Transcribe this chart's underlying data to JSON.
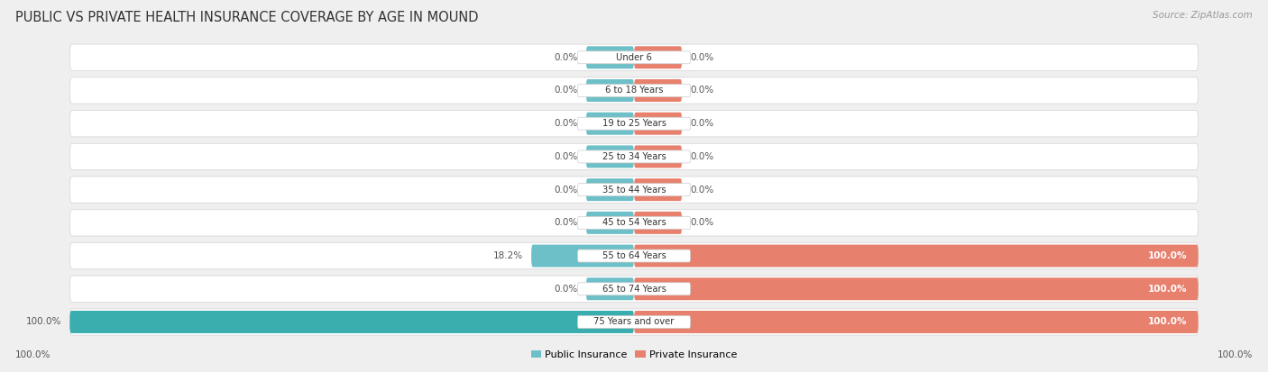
{
  "title": "PUBLIC VS PRIVATE HEALTH INSURANCE COVERAGE BY AGE IN MOUND",
  "source": "Source: ZipAtlas.com",
  "categories": [
    "Under 6",
    "6 to 18 Years",
    "19 to 25 Years",
    "25 to 34 Years",
    "35 to 44 Years",
    "45 to 54 Years",
    "55 to 64 Years",
    "65 to 74 Years",
    "75 Years and over"
  ],
  "public_values": [
    0.0,
    0.0,
    0.0,
    0.0,
    0.0,
    0.0,
    18.2,
    0.0,
    100.0
  ],
  "private_values": [
    0.0,
    0.0,
    0.0,
    0.0,
    0.0,
    0.0,
    100.0,
    100.0,
    100.0
  ],
  "public_color": "#6dbfc8",
  "private_color": "#e8806e",
  "public_full_color": "#3aadaf",
  "background_color": "#efefef",
  "row_bg_color": "#ffffff",
  "row_border_color": "#d8d8d8",
  "pill_bg_color": "#ffffff",
  "title_fontsize": 10.5,
  "source_fontsize": 7.5,
  "value_fontsize": 7.5,
  "cat_fontsize": 7.2,
  "legend_label_public": "Public Insurance",
  "legend_label_private": "Private Insurance",
  "bottom_left_label": "100.0%",
  "bottom_right_label": "100.0%"
}
